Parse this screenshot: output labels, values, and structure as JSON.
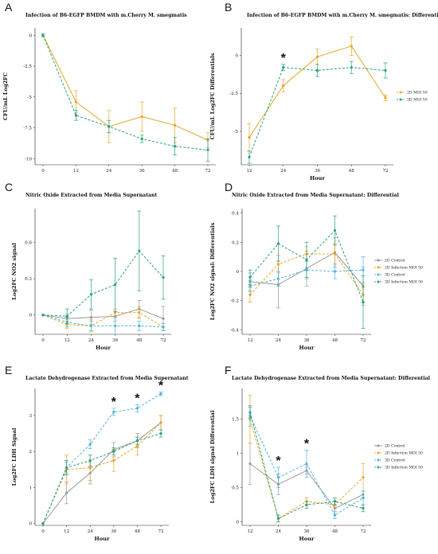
{
  "colors": {
    "2D Control": "#999999",
    "2D Infection MOI 50": "#e6a521",
    "3D Control": "#4db3d9",
    "3D Infection MOI 50": "#2aa07a",
    "2D MOI 50": "#e6a521",
    "3D MOI 50": "#2aa07a"
  },
  "chart_data": [
    {
      "panel": "A",
      "type": "line",
      "title": "Infection of B6-EGFP BMDM with m.Cherry M. smegmatis",
      "xlabel": "",
      "ylabel": "CFU/mL Log2FC",
      "x": [
        0,
        12,
        24,
        36,
        48,
        72
      ],
      "ylim": [
        -10.5,
        0.6
      ],
      "yticks": [
        -10,
        -7.5,
        -5,
        -2.5,
        0
      ],
      "series": [
        {
          "name": "2D MOI 50",
          "values": [
            0,
            -5.4,
            -7.4,
            -6.6,
            -7.3,
            -8.5
          ],
          "err": [
            0.1,
            0.9,
            1.3,
            1.2,
            1.4,
            0.6
          ],
          "dash": false
        },
        {
          "name": "3D MOI 50",
          "values": [
            0,
            -6.5,
            -7.4,
            -8.4,
            -9.0,
            -9.3
          ],
          "err": [
            0.1,
            0.4,
            0.5,
            0.3,
            0.7,
            0.9
          ],
          "dash": true
        }
      ]
    },
    {
      "panel": "B",
      "type": "line",
      "title": "Infection of B6-EGFP BMDM with m.Cherry M. smegmatis: Differentials",
      "xlabel": "Hour",
      "ylabel": "CFU/mL Log2FC Differentials",
      "x": [
        12,
        24,
        36,
        48,
        72
      ],
      "ylim": [
        -7.2,
        1.8
      ],
      "yticks": [
        -5,
        -2.5,
        0
      ],
      "legend": [
        "2D MOI 50",
        "3D MOI 50"
      ],
      "stars": [
        24
      ],
      "series": [
        {
          "name": "2D MOI 50",
          "values": [
            -5.4,
            -2.0,
            -0.1,
            0.6,
            -2.8
          ],
          "err": [
            0.9,
            0.4,
            0.5,
            0.6,
            0.2
          ],
          "dash": false
        },
        {
          "name": "3D MOI 50",
          "values": [
            -6.7,
            -0.8,
            -1.0,
            -0.8,
            -1.0
          ],
          "err": [
            0.4,
            0.2,
            0.4,
            0.4,
            0.5
          ],
          "dash": true
        }
      ]
    },
    {
      "panel": "C",
      "type": "line",
      "title": "Nitric Oxide Extracted from Media Supernatant",
      "xlabel": "Hour",
      "ylabel": "Log2FC NO2 signal",
      "x": [
        0,
        12,
        24,
        36,
        48,
        72
      ],
      "ylim": [
        -0.16,
        0.88
      ],
      "yticks": [
        0,
        0.3,
        0.6
      ],
      "series": [
        {
          "name": "2D Control",
          "values": [
            0,
            -0.03,
            -0.02,
            -0.01,
            0.05,
            -0.03
          ],
          "err": [
            0,
            0.04,
            0.06,
            0.04,
            0.07,
            0.1
          ],
          "dash": false
        },
        {
          "name": "2D Infection MOI 50",
          "values": [
            0,
            -0.08,
            -0.09,
            0.02,
            0.02,
            -0.1
          ],
          "err": [
            0,
            0.03,
            0.05,
            0.03,
            0.05,
            0.03
          ],
          "dash": true
        },
        {
          "name": "3D Control",
          "values": [
            0,
            -0.06,
            -0.09,
            -0.09,
            -0.09,
            -0.1
          ],
          "err": [
            0,
            0.04,
            0.04,
            0.07,
            0.04,
            0.03
          ],
          "dash": true
        },
        {
          "name": "3D Infection MOI 50",
          "values": [
            0,
            -0.01,
            0.17,
            0.25,
            0.53,
            0.31
          ],
          "err": [
            0,
            0.06,
            0.12,
            0.22,
            0.33,
            0.18
          ],
          "dash": true
        }
      ]
    },
    {
      "panel": "D",
      "type": "line",
      "title": "Nitric Oxide Extracted from Media Supernatant: Differential",
      "xlabel": "Hour",
      "ylabel": "Log2FC NO2 signal: Differentials",
      "x": [
        12,
        24,
        36,
        48,
        72
      ],
      "ylim": [
        -0.43,
        0.43
      ],
      "yticks": [
        -0.4,
        -0.2,
        0,
        0.2,
        0.4
      ],
      "legend": [
        "2D Control",
        "2D Infection MOI 50",
        "3D Control",
        "3D Infection MOI 50"
      ],
      "series": [
        {
          "name": "2D Control",
          "values": [
            -0.07,
            -0.09,
            0.02,
            0.13,
            -0.1
          ],
          "err": [
            0.06,
            0.16,
            0.12,
            0.1,
            0.13
          ],
          "dash": false
        },
        {
          "name": "2D Infection MOI 50",
          "values": [
            -0.16,
            0.05,
            0.12,
            0.12,
            -0.16
          ],
          "err": [
            0.05,
            0.06,
            0.05,
            0.07,
            0.05
          ],
          "dash": true
        },
        {
          "name": "3D Control",
          "values": [
            -0.1,
            -0.05,
            0.01,
            0.0,
            0.01
          ],
          "err": [
            0.04,
            0.05,
            0.06,
            0.05,
            0.09
          ],
          "dash": true
        },
        {
          "name": "3D Infection MOI 50",
          "values": [
            -0.04,
            0.19,
            0.08,
            0.28,
            -0.21
          ],
          "err": [
            0.05,
            0.12,
            0.12,
            0.1,
            0.18
          ],
          "dash": true
        }
      ]
    },
    {
      "panel": "E",
      "type": "line",
      "title": "Lactate Dehydrogenase Extracted from Media Supernatant",
      "xlabel": "Hour",
      "ylabel": "Log2FC LDH Signal",
      "x": [
        0,
        12,
        24,
        36,
        48,
        72
      ],
      "ylim": [
        -0.05,
        3.75
      ],
      "yticks": [
        0,
        1,
        2,
        3
      ],
      "stars": [
        36,
        48,
        72
      ],
      "series": [
        {
          "name": "2D Control",
          "values": [
            0,
            0.85,
            1.4,
            2.05,
            2.3,
            2.8
          ],
          "err": [
            0,
            0.3,
            0.3,
            0.2,
            0.2,
            0.2
          ],
          "dash": false
        },
        {
          "name": "2D Infection MOI 50",
          "values": [
            0,
            1.5,
            1.55,
            1.75,
            2.15,
            2.8
          ],
          "err": [
            0,
            0.4,
            0.35,
            0.3,
            0.25,
            0.2
          ],
          "dash": true
        },
        {
          "name": "3D Control",
          "values": [
            0,
            1.55,
            2.2,
            3.1,
            3.2,
            3.6
          ],
          "err": [
            0,
            0.15,
            0.12,
            0.1,
            0.1,
            0.05
          ],
          "dash": true
        },
        {
          "name": "3D Infection MOI 50",
          "values": [
            0,
            1.55,
            1.75,
            2.0,
            2.3,
            2.5
          ],
          "err": [
            0,
            0.2,
            0.15,
            0.1,
            0.1,
            0.1
          ],
          "dash": true
        }
      ]
    },
    {
      "panel": "F",
      "type": "line",
      "title": "Lactate Dehydrogenase Extracted from Media Supernatant: Differential",
      "xlabel": "Hour",
      "ylabel": "Log2FC LDH signal Differential",
      "x": [
        12,
        24,
        36,
        48,
        72
      ],
      "ylim": [
        -0.05,
        1.95
      ],
      "yticks": [
        0,
        0.5,
        1,
        1.5
      ],
      "legend": [
        "2D Control",
        "2D Infection MOI 50",
        "3D Control",
        "3D Infection MOI 50"
      ],
      "stars": [
        24,
        36
      ],
      "series": [
        {
          "name": "2D Control",
          "values": [
            0.85,
            0.55,
            0.75,
            0.2,
            0.4
          ],
          "err": [
            0.3,
            0.15,
            0.05,
            0.05,
            0.05
          ],
          "dash": false
        },
        {
          "name": "2D Infection MOI 50",
          "values": [
            1.5,
            0.05,
            0.3,
            0.25,
            0.65
          ],
          "err": [
            0.35,
            0.05,
            0.05,
            0.05,
            0.2
          ],
          "dash": true
        },
        {
          "name": "3D Control",
          "values": [
            1.55,
            0.65,
            0.85,
            0.1,
            0.35
          ],
          "err": [
            0.15,
            0.15,
            0.2,
            0.05,
            0.1
          ],
          "dash": true
        },
        {
          "name": "3D Infection MOI 50",
          "values": [
            1.6,
            0.05,
            0.25,
            0.3,
            0.2
          ],
          "err": [
            0.08,
            0.05,
            0.05,
            0.05,
            0.05
          ],
          "dash": true
        }
      ]
    }
  ]
}
